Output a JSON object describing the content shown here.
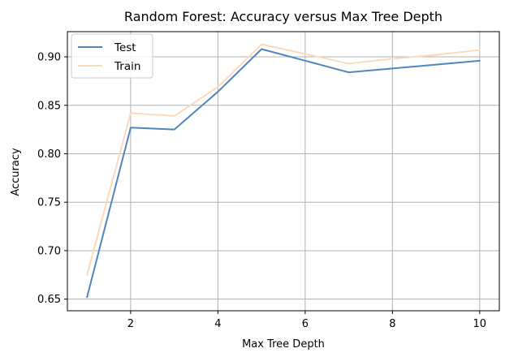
{
  "chart_data": {
    "type": "line",
    "title": "Random Forest: Accuracy versus Max Tree Depth",
    "xlabel": "Max Tree Depth",
    "ylabel": "Accuracy",
    "x": [
      1,
      2,
      3,
      4,
      5,
      6,
      7,
      8,
      9,
      10
    ],
    "xlim": [
      0.55,
      10.45
    ],
    "ylim": [
      0.638,
      0.926
    ],
    "xticks": [
      2,
      4,
      6,
      8,
      10
    ],
    "yticks": [
      0.65,
      0.7,
      0.75,
      0.8,
      0.85,
      0.9
    ],
    "grid": true,
    "legend_position": "top-left",
    "series": [
      {
        "name": "Test",
        "color": "#4f86c0",
        "values": [
          0.652,
          0.827,
          0.825,
          0.864,
          0.908,
          0.896,
          0.884,
          0.888,
          0.892,
          0.896
        ]
      },
      {
        "name": "Train",
        "color": "#fdd9bc",
        "values": [
          0.675,
          0.842,
          0.839,
          0.869,
          0.913,
          0.903,
          0.893,
          0.898,
          0.902,
          0.907
        ]
      }
    ]
  }
}
